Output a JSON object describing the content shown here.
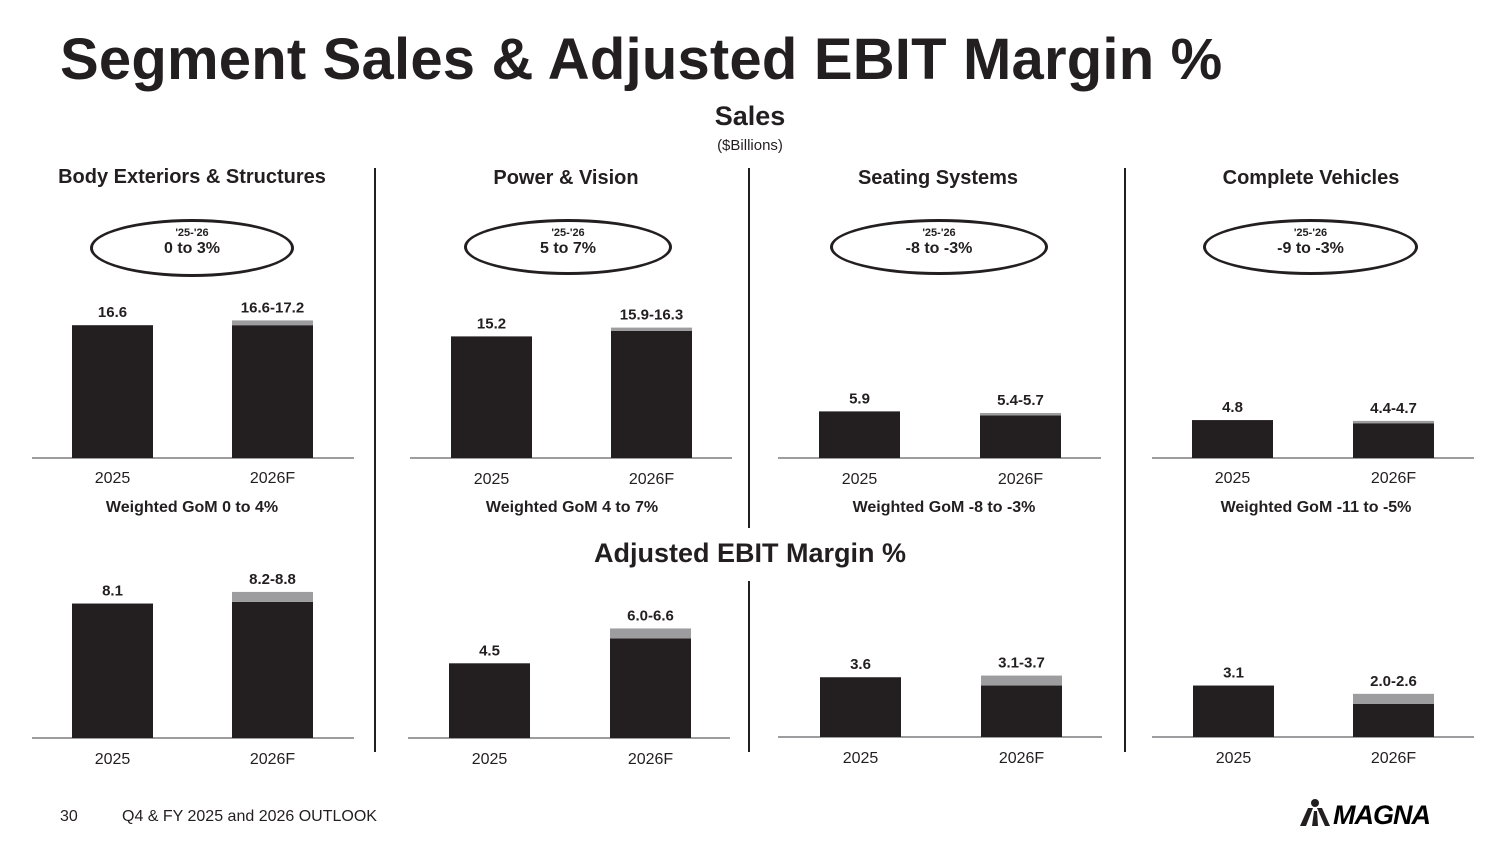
{
  "title": "Segment Sales & Adjusted EBIT Margin %",
  "sales_heading": "Sales",
  "sales_subheading": "($Billions)",
  "ebit_heading": "Adjusted EBIT Margin %",
  "panels": [
    {
      "title": "Body Exteriors & Structures",
      "oval_year": "'25-'26",
      "oval_range": "0 to 3%",
      "gom": "Weighted GoM 0 to 4%"
    },
    {
      "title": "Power & Vision",
      "oval_year": "'25-'26",
      "oval_range": "5 to 7%",
      "gom": "Weighted GoM 4 to 7%"
    },
    {
      "title": "Seating Systems",
      "oval_year": "'25-'26",
      "oval_range": "-8 to -3%",
      "gom": "Weighted GoM -8 to -3%"
    },
    {
      "title": "Complete Vehicles",
      "oval_year": "'25-'26",
      "oval_range": "-9 to -3%",
      "gom": "Weighted GoM -11 to -5%"
    }
  ],
  "chart_data": [
    {
      "type": "bar",
      "segment": "Body Exteriors & Structures",
      "metric": "Sales",
      "categories": [
        "2025",
        "2026F"
      ],
      "values": [
        16.6,
        [
          16.6,
          17.2
        ]
      ],
      "labels": [
        "16.6",
        "16.6-17.2"
      ]
    },
    {
      "type": "bar",
      "segment": "Power & Vision",
      "metric": "Sales",
      "categories": [
        "2025",
        "2026F"
      ],
      "values": [
        15.2,
        [
          15.9,
          16.3
        ]
      ],
      "labels": [
        "15.2",
        "15.9-16.3"
      ]
    },
    {
      "type": "bar",
      "segment": "Seating Systems",
      "metric": "Sales",
      "categories": [
        "2025",
        "2026F"
      ],
      "values": [
        5.9,
        [
          5.4,
          5.7
        ]
      ],
      "labels": [
        "5.9",
        "5.4-5.7"
      ]
    },
    {
      "type": "bar",
      "segment": "Complete Vehicles",
      "metric": "Sales",
      "categories": [
        "2025",
        "2026F"
      ],
      "values": [
        4.8,
        [
          4.4,
          4.7
        ]
      ],
      "labels": [
        "4.8",
        "4.4-4.7"
      ]
    },
    {
      "type": "bar",
      "segment": "Body Exteriors & Structures",
      "metric": "Adjusted EBIT Margin %",
      "categories": [
        "2025",
        "2026F"
      ],
      "values": [
        8.1,
        [
          8.2,
          8.8
        ]
      ],
      "labels": [
        "8.1",
        "8.2-8.8"
      ]
    },
    {
      "type": "bar",
      "segment": "Power & Vision",
      "metric": "Adjusted EBIT Margin %",
      "categories": [
        "2025",
        "2026F"
      ],
      "values": [
        4.5,
        [
          6.0,
          6.6
        ]
      ],
      "labels": [
        "4.5",
        "6.0-6.6"
      ]
    },
    {
      "type": "bar",
      "segment": "Seating Systems",
      "metric": "Adjusted EBIT Margin %",
      "categories": [
        "2025",
        "2026F"
      ],
      "values": [
        3.6,
        [
          3.1,
          3.7
        ]
      ],
      "labels": [
        "3.6",
        "3.1-3.7"
      ]
    },
    {
      "type": "bar",
      "segment": "Complete Vehicles",
      "metric": "Adjusted EBIT Margin %",
      "categories": [
        "2025",
        "2026F"
      ],
      "values": [
        3.1,
        [
          2.0,
          2.6
        ]
      ],
      "labels": [
        "3.1",
        "2.0-2.6"
      ]
    }
  ],
  "colors": {
    "bar": "#231f20",
    "range": "#9d9c9e",
    "axis": "#9d9c9e",
    "text": "#231f20"
  },
  "footer": {
    "page_number": "30",
    "text": "Q4 & FY 2025 and 2026 OUTLOOK"
  },
  "logo": {
    "word": "MAGNA",
    "icon": "magna-logo-icon"
  }
}
